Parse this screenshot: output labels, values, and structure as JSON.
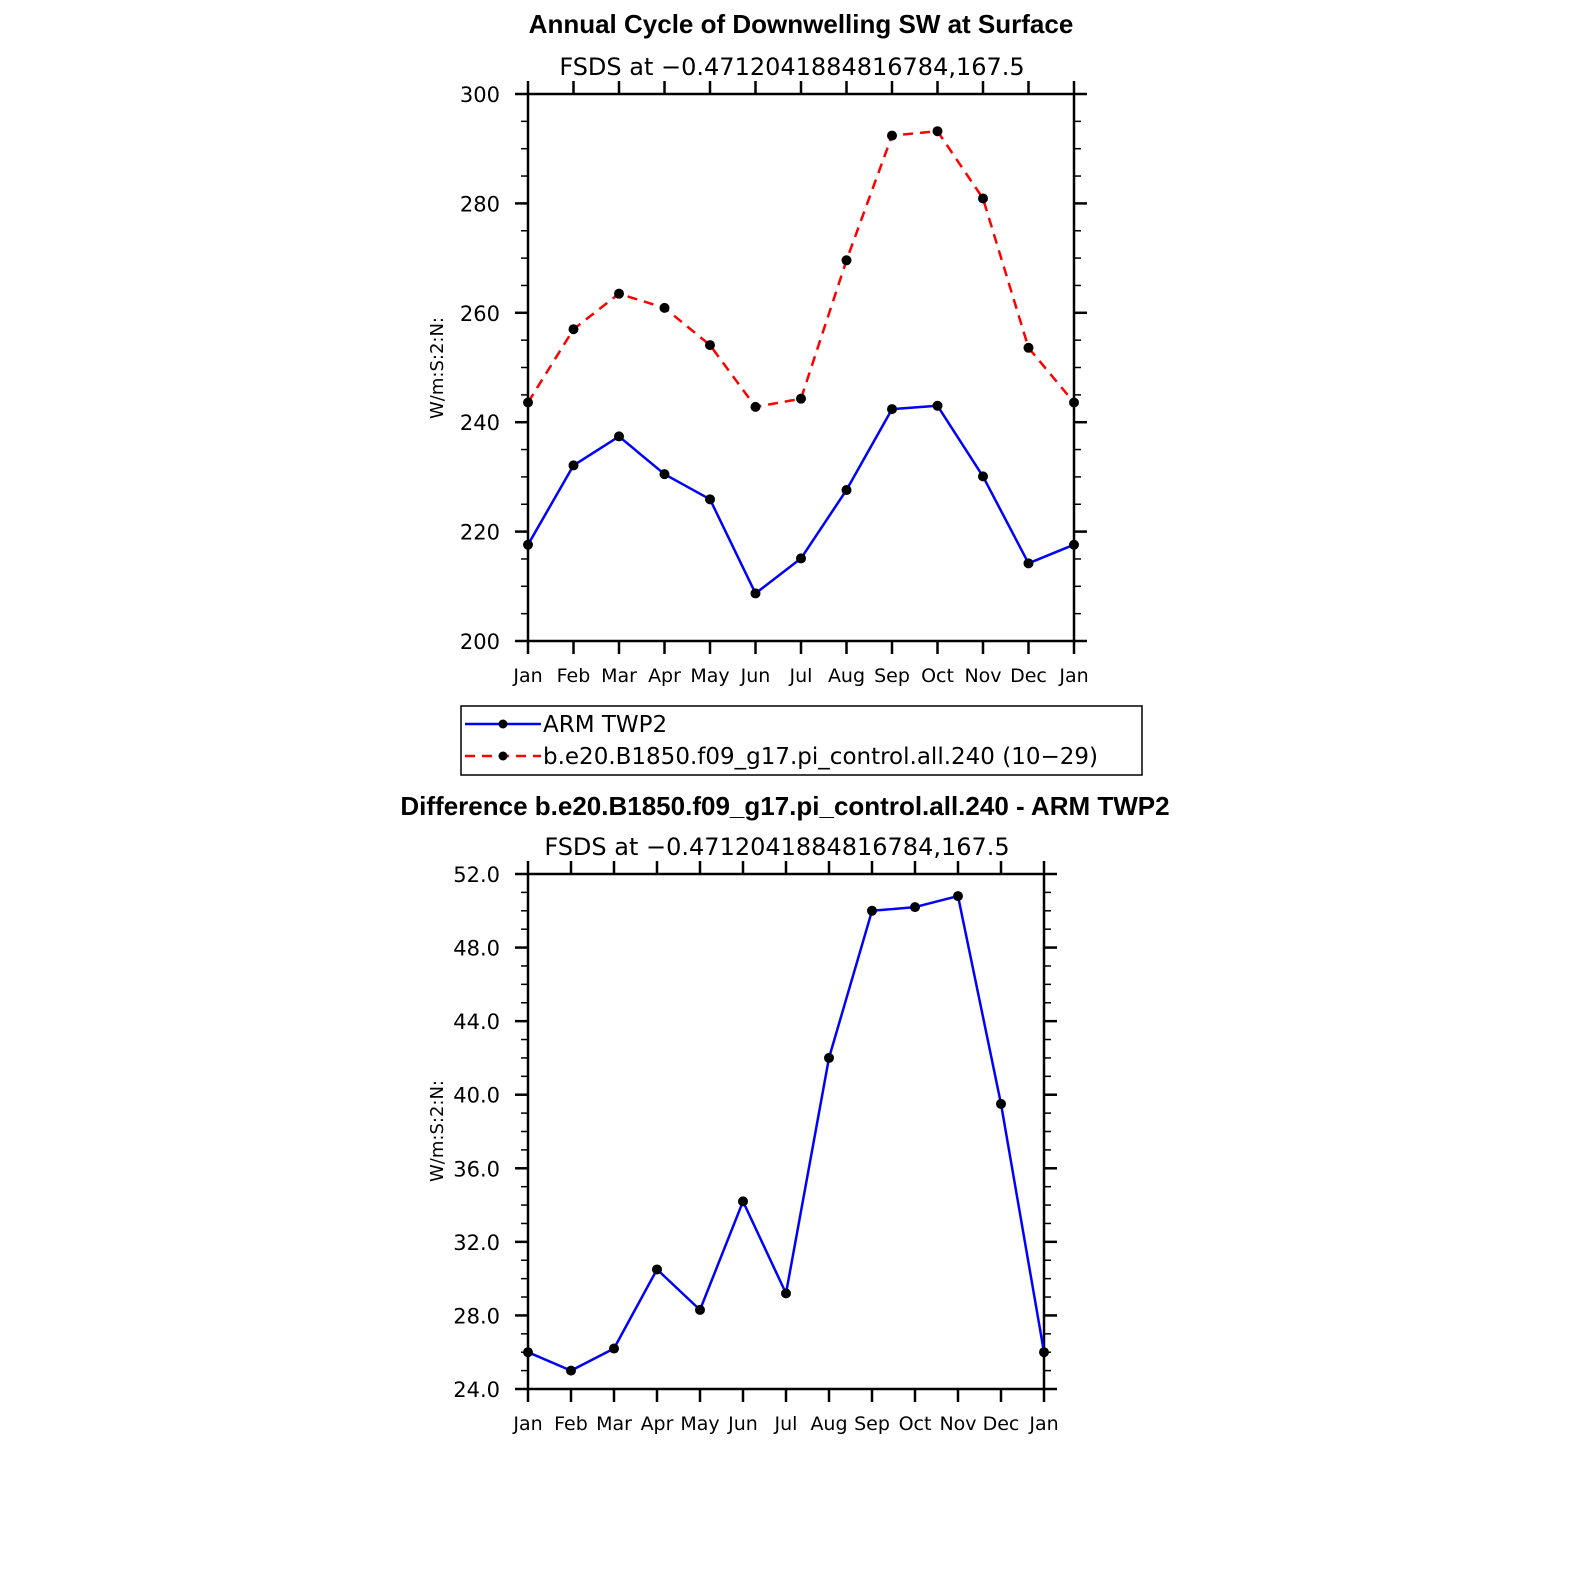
{
  "chart_data": [
    {
      "type": "line",
      "title": "Annual Cycle of Downwelling SW at Surface",
      "subtitle": "FSDS at −0.4712041884816784,167.5",
      "ylabel": "W/m:S:2:N:",
      "ylim": [
        200,
        300
      ],
      "yticks": [
        "200",
        "220",
        "240",
        "260",
        "280",
        "300"
      ],
      "categories": [
        "Jan",
        "Feb",
        "Mar",
        "Apr",
        "May",
        "Jun",
        "Jul",
        "Aug",
        "Sep",
        "Oct",
        "Nov",
        "Dec",
        "Jan"
      ],
      "grid": false,
      "legend_position": "below",
      "series": [
        {
          "name": "ARM TWP2",
          "color": "#0000ff",
          "dash": "solid",
          "values": [
            217.6,
            232.1,
            237.4,
            230.5,
            225.9,
            208.7,
            215.1,
            227.6,
            242.4,
            243.0,
            230.1,
            214.2,
            217.6
          ]
        },
        {
          "name": "b.e20.B1850.f09_g17.pi_control.all.240 (10−29)",
          "color": "#ff0000",
          "dash": "dashed",
          "values": [
            243.6,
            257.0,
            263.5,
            260.9,
            254.1,
            242.8,
            244.3,
            269.6,
            292.4,
            293.2,
            280.9,
            253.6,
            243.6
          ]
        }
      ]
    },
    {
      "type": "line",
      "title": "Difference b.e20.B1850.f09_g17.pi_control.all.240 - ARM TWP2",
      "subtitle": "FSDS at −0.4712041884816784,167.5",
      "ylabel": "W/m:S:2:N:",
      "ylim": [
        24,
        52
      ],
      "yticks": [
        "24.0",
        "28.0",
        "32.0",
        "36.0",
        "40.0",
        "44.0",
        "48.0",
        "52.0"
      ],
      "categories": [
        "Jan",
        "Feb",
        "Mar",
        "Apr",
        "May",
        "Jun",
        "Jul",
        "Aug",
        "Sep",
        "Oct",
        "Nov",
        "Dec",
        "Jan"
      ],
      "grid": false,
      "series": [
        {
          "color": "#0000ff",
          "dash": "solid",
          "values": [
            26.0,
            25.0,
            26.2,
            30.5,
            28.3,
            34.2,
            29.2,
            42.0,
            50.0,
            50.2,
            50.8,
            39.5,
            26.0
          ]
        }
      ]
    }
  ]
}
